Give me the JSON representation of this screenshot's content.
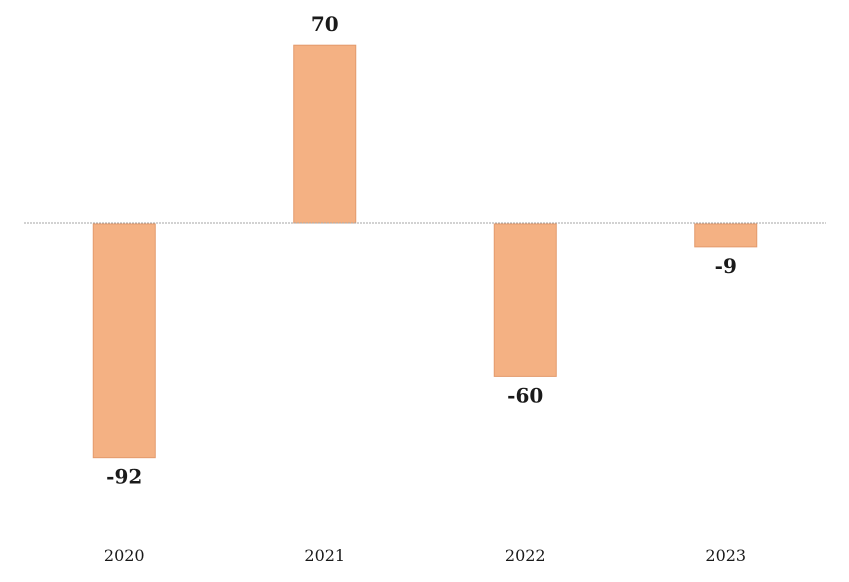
{
  "chart_data": {
    "type": "bar",
    "categories": [
      "2020",
      "2021",
      "2022",
      "2023"
    ],
    "values": [
      -92,
      70,
      -60,
      -9
    ],
    "title": "",
    "xlabel": "",
    "ylabel": "",
    "ylim": [
      -92,
      70
    ],
    "grid": false,
    "legend": "none",
    "colors": {
      "bar_fill": "#F4B183",
      "bar_stroke": "#E39A6C",
      "axis": "#A6A6A6"
    }
  }
}
